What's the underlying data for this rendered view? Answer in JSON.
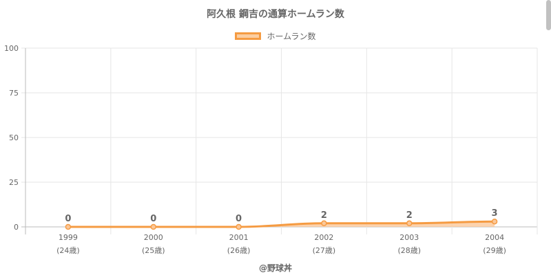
{
  "chart_data": {
    "type": "area",
    "title": "阿久根 鋼吉の通算ホームラン数",
    "categories": [
      "1999",
      "2000",
      "2001",
      "2002",
      "2003",
      "2004"
    ],
    "category_sublabels": [
      "(24歳)",
      "(25歳)",
      "(26歳)",
      "(27歳)",
      "(28歳)",
      "(29歳)"
    ],
    "series": [
      {
        "name": "ホームラン数",
        "values": [
          0,
          0,
          0,
          2,
          2,
          3
        ],
        "color": "#f59b42",
        "fill": "#fbc89a"
      }
    ],
    "ylim": [
      0,
      100
    ],
    "yticks": [
      0,
      25,
      50,
      75,
      100
    ],
    "grid": true,
    "legend_position": "top",
    "data_labels": true
  },
  "credit": "@野球丼"
}
